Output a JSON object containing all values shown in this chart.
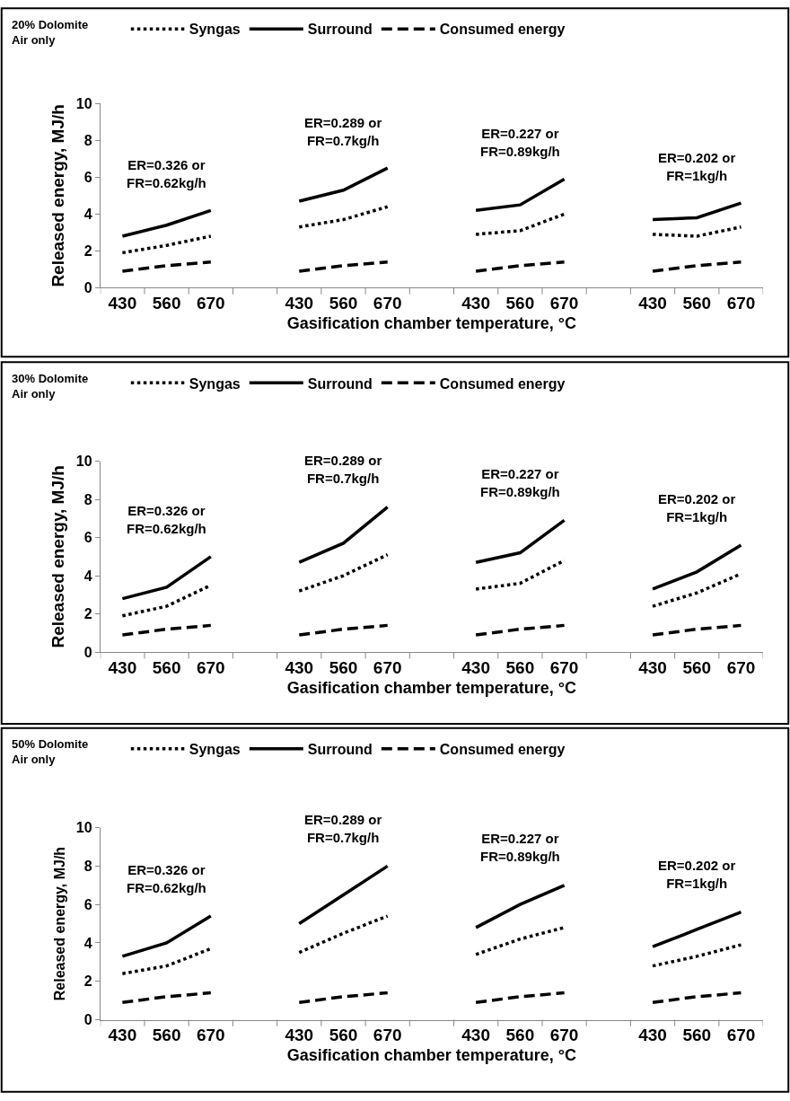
{
  "chart_data": [
    {
      "type": "line",
      "title": "20% Dolomite\nAir only",
      "xlabel": "Gasification chamber temperature, °C",
      "ylabel": "Released energy, MJ/h",
      "legend": "top",
      "marker": "none",
      "categories": [
        "430",
        "560",
        "670",
        null,
        "430",
        "560",
        "670",
        null,
        "430",
        "560",
        "670",
        null,
        "430",
        "560",
        "670"
      ],
      "ylim": [
        0,
        10
      ],
      "yticks": [
        0,
        2,
        4,
        6,
        8,
        10
      ],
      "annotations": [
        "ER=0.326 or\nFR=0.62kg/h",
        "ER=0.289 or\nFR=0.7kg/h",
        "ER=0.227 or\nFR=0.89kg/h",
        "ER=0.202 or\nFR=1kg/h"
      ],
      "series": [
        {
          "name": "Syngas",
          "color": "#000000",
          "line_style": "dotted",
          "values": [
            1.9,
            2.3,
            2.8,
            null,
            3.3,
            3.7,
            4.4,
            null,
            2.9,
            3.1,
            4.0,
            null,
            2.9,
            2.8,
            3.3
          ]
        },
        {
          "name": "Surround",
          "color": "#000000",
          "line_style": "solid",
          "values": [
            2.8,
            3.4,
            4.2,
            null,
            4.7,
            5.3,
            6.5,
            null,
            4.2,
            4.5,
            5.9,
            null,
            3.7,
            3.8,
            4.6
          ]
        },
        {
          "name": "Consumed energy",
          "color": "#000000",
          "line_style": "dashed",
          "values": [
            0.9,
            1.2,
            1.4,
            null,
            0.9,
            1.2,
            1.4,
            null,
            0.9,
            1.2,
            1.4,
            null,
            0.9,
            1.2,
            1.4
          ]
        }
      ]
    },
    {
      "type": "line",
      "title": "30% Dolomite\nAir only",
      "xlabel": "Gasification chamber temperature, °C",
      "ylabel": "Released energy, MJ/h",
      "legend": "top",
      "marker": "none",
      "categories": [
        "430",
        "560",
        "670",
        null,
        "430",
        "560",
        "670",
        null,
        "430",
        "560",
        "670",
        null,
        "430",
        "560",
        "670"
      ],
      "ylim": [
        0,
        10
      ],
      "yticks": [
        0,
        2,
        4,
        6,
        8,
        10
      ],
      "annotations": [
        "ER=0.326 or\nFR=0.62kg/h",
        "ER=0.289 or\nFR=0.7kg/h",
        "ER=0.227 or\nFR=0.89kg/h",
        "ER=0.202 or\nFR=1kg/h"
      ],
      "series": [
        {
          "name": "Syngas",
          "color": "#000000",
          "line_style": "dotted",
          "values": [
            1.9,
            2.4,
            3.5,
            null,
            3.2,
            4.0,
            5.1,
            null,
            3.3,
            3.6,
            4.8,
            null,
            2.4,
            3.1,
            4.1
          ]
        },
        {
          "name": "Surround",
          "color": "#000000",
          "line_style": "solid",
          "values": [
            2.8,
            3.4,
            5.0,
            null,
            4.7,
            5.7,
            7.6,
            null,
            4.7,
            5.2,
            6.9,
            null,
            3.3,
            4.2,
            5.6
          ]
        },
        {
          "name": "Consumed energy",
          "color": "#000000",
          "line_style": "dashed",
          "values": [
            0.9,
            1.2,
            1.4,
            null,
            0.9,
            1.2,
            1.4,
            null,
            0.9,
            1.2,
            1.4,
            null,
            0.9,
            1.2,
            1.4
          ]
        }
      ]
    },
    {
      "type": "line",
      "title": "50% Dolomite\nAir only",
      "xlabel": "Gasification chamber temperature, °C",
      "ylabel": "Released energy, MJ/h",
      "legend": "top",
      "marker": "none",
      "categories": [
        "430",
        "560",
        "670",
        null,
        "430",
        "560",
        "670",
        null,
        "430",
        "560",
        "670",
        null,
        "430",
        "560",
        "670"
      ],
      "ylim": [
        0,
        10
      ],
      "yticks": [
        0,
        2,
        4,
        6,
        8,
        10
      ],
      "annotations": [
        "ER=0.326 or\nFR=0.62kg/h",
        "ER=0.289 or\nFR=0.7kg/h",
        "ER=0.227 or\nFR=0.89kg/h",
        "ER=0.202 or\nFR=1kg/h"
      ],
      "series": [
        {
          "name": "Syngas",
          "color": "#000000",
          "line_style": "dotted",
          "values": [
            2.4,
            2.8,
            3.7,
            null,
            3.5,
            4.5,
            5.4,
            null,
            3.4,
            4.2,
            4.8,
            null,
            2.8,
            3.3,
            3.9
          ]
        },
        {
          "name": "Surround",
          "color": "#000000",
          "line_style": "solid",
          "values": [
            3.3,
            4.0,
            5.4,
            null,
            5.0,
            6.5,
            8.0,
            null,
            4.8,
            6.0,
            7.0,
            null,
            3.8,
            4.7,
            5.6
          ]
        },
        {
          "name": "Consumed energy",
          "color": "#000000",
          "line_style": "dashed",
          "values": [
            0.9,
            1.2,
            1.4,
            null,
            0.9,
            1.2,
            1.4,
            null,
            0.9,
            1.2,
            1.4,
            null,
            0.9,
            1.2,
            1.4
          ]
        }
      ]
    }
  ]
}
